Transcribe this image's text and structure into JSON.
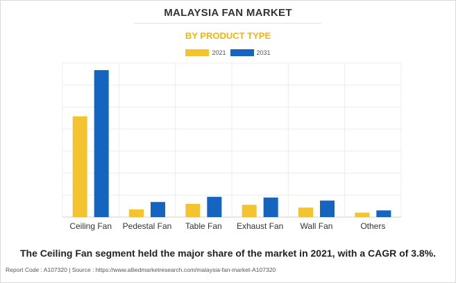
{
  "header": {
    "title": "MALAYSIA FAN MARKET",
    "subtitle": "BY PRODUCT TYPE"
  },
  "colors": {
    "series_2021": "#f4c430",
    "series_2031": "#1565c0",
    "subtitle": "#f2b705"
  },
  "chart_data": {
    "type": "bar",
    "categories": [
      "Ceiling Fan",
      "Pedestal Fan",
      "Table Fan",
      "Exhaust Fan",
      "Wall Fan",
      "Others"
    ],
    "series": [
      {
        "name": "2021",
        "values": [
          72,
          5.5,
          9.5,
          8.8,
          6.8,
          3.2
        ]
      },
      {
        "name": "2031",
        "values": [
          105,
          10.8,
          14.5,
          14,
          11.8,
          4.8
        ]
      }
    ],
    "ylim": [
      0,
      110
    ],
    "grid": true,
    "legend": "top-center",
    "xlabel": "",
    "ylabel": ""
  },
  "caption": "The Ceiling Fan segment held the major share of the market in 2021, with a CAGR of 3.8%.",
  "footer": "Report Code : A107320  |  Source : https://www.alliedmarketresearch.com/malaysia-fan-market-A107320"
}
